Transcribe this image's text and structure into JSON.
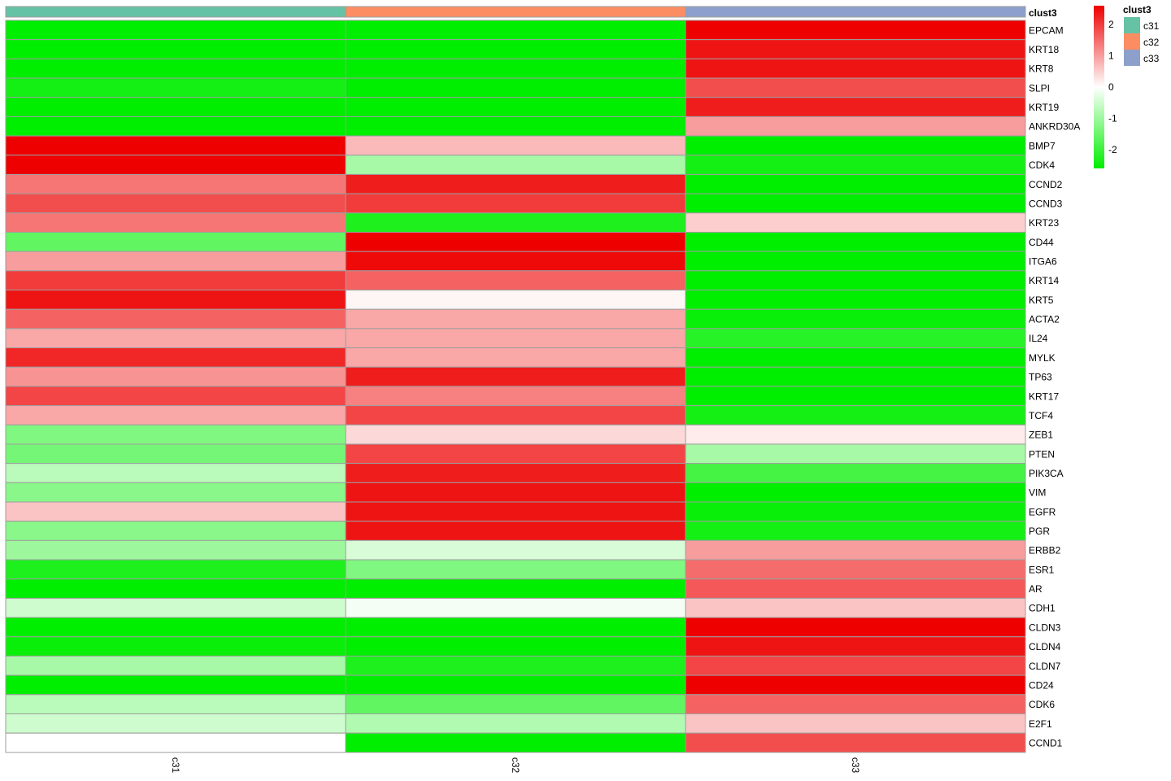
{
  "chart_data": {
    "type": "heatmap",
    "annotation_title": "clust3",
    "columns": [
      "c31",
      "c32",
      "c33"
    ],
    "annotation_colors": {
      "c31": "#66C2A5",
      "c32": "#FC8D62",
      "c33": "#8DA0CB"
    },
    "rows": [
      "EPCAM",
      "KRT18",
      "KRT8",
      "SLPI",
      "KRT19",
      "ANKRD30A",
      "BMP7",
      "CDK4",
      "CCND2",
      "CCND3",
      "KRT23",
      "CD44",
      "ITGA6",
      "KRT14",
      "KRT5",
      "ACTA2",
      "IL24",
      "MYLK",
      "TP63",
      "KRT17",
      "TCF4",
      "ZEB1",
      "PTEN",
      "PIK3CA",
      "VIM",
      "EGFR",
      "PGR",
      "ERBB2",
      "ESR1",
      "AR",
      "CDH1",
      "CLDN3",
      "CLDN4",
      "CLDN7",
      "CD24",
      "CDK6",
      "E2F1",
      "CCND1"
    ],
    "values": [
      [
        -2.6,
        -2.6,
        2.6
      ],
      [
        -2.6,
        -2.6,
        2.4
      ],
      [
        -2.6,
        -2.6,
        2.4
      ],
      [
        -2.4,
        -2.6,
        1.8
      ],
      [
        -2.6,
        -2.6,
        2.3
      ],
      [
        -2.6,
        -2.6,
        1.0
      ],
      [
        2.6,
        0.7,
        -2.6
      ],
      [
        2.6,
        -0.9,
        -2.4
      ],
      [
        1.4,
        2.3,
        -2.6
      ],
      [
        1.8,
        2.0,
        -2.6
      ],
      [
        1.4,
        -2.3,
        0.5
      ],
      [
        -1.6,
        2.6,
        -2.6
      ],
      [
        1.0,
        2.5,
        -2.6
      ],
      [
        2.0,
        1.6,
        -2.6
      ],
      [
        2.4,
        0.1,
        -2.6
      ],
      [
        1.6,
        0.9,
        -2.5
      ],
      [
        0.9,
        0.9,
        -2.2
      ],
      [
        2.2,
        0.9,
        -2.6
      ],
      [
        1.1,
        2.3,
        -2.6
      ],
      [
        1.9,
        1.3,
        -2.6
      ],
      [
        0.9,
        1.9,
        -2.4
      ],
      [
        -1.3,
        0.4,
        0.2
      ],
      [
        -1.4,
        1.9,
        -0.9
      ],
      [
        -0.7,
        2.3,
        -1.9
      ],
      [
        -1.2,
        2.4,
        -2.6
      ],
      [
        0.6,
        2.4,
        -2.5
      ],
      [
        -1.2,
        2.4,
        -2.4
      ],
      [
        -1.0,
        -0.4,
        1.0
      ],
      [
        -2.3,
        -1.3,
        1.5
      ],
      [
        -2.6,
        -2.6,
        1.7
      ],
      [
        -0.5,
        -0.1,
        0.6
      ],
      [
        -2.6,
        -2.6,
        2.6
      ],
      [
        -2.5,
        -2.6,
        2.4
      ],
      [
        -0.9,
        -2.3,
        1.9
      ],
      [
        -2.6,
        -2.6,
        2.6
      ],
      [
        -0.7,
        -1.6,
        1.6
      ],
      [
        -0.5,
        -0.8,
        0.6
      ],
      [
        0.0,
        -2.6,
        1.8
      ]
    ],
    "colorbar": {
      "ticks": [
        2,
        1,
        0,
        -1,
        -2
      ],
      "tick_labels": [
        "2",
        "1",
        "0",
        "-1",
        "-2"
      ],
      "range": [
        -2.6,
        2.6
      ],
      "low_color": "#00EE00",
      "mid_color": "#FFFFFF",
      "high_color": "#EE0000"
    },
    "grid_color": "#9E9E9E"
  }
}
